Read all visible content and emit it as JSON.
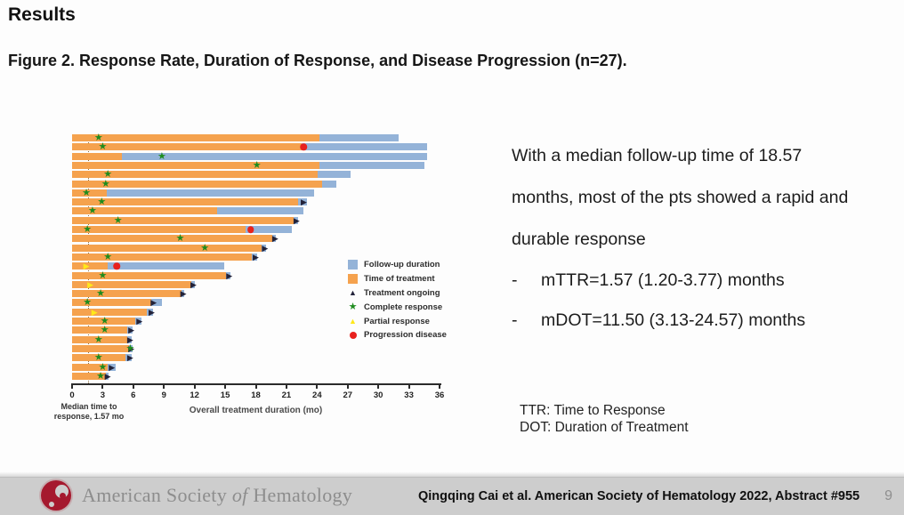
{
  "slide": {
    "title": "Results",
    "figure_caption": "Figure 2. Response Rate, Duration of Response, and Disease Progression (n=27).",
    "body": {
      "paragraph_lines": [
        "With a median follow-up time of 18.57",
        "months, most of the pts showed a rapid and",
        "durable response"
      ],
      "bullet_dash": "-",
      "bullets": [
        "mTTR=1.57 (1.20-3.77) months",
        "mDOT=11.50 (3.13-24.57) months"
      ]
    },
    "footnote_lines": [
      "TTR: Time to Response",
      "DOT: Duration of Treatment"
    ],
    "footer": {
      "org_prefix": "American Society ",
      "org_middle": "of",
      "org_suffix": " Hematology",
      "citation": "Qingqing Cai et al. American Society of Hematology 2022, Abstract #955",
      "page": "9"
    }
  },
  "chart_data": {
    "type": "bar",
    "subtype": "swimmer-plot",
    "n_patients": 27,
    "xlabel": "Overall treatment duration (mo)",
    "xlim": [
      0,
      36
    ],
    "x_ticks": [
      0,
      3,
      6,
      9,
      12,
      15,
      18,
      21,
      24,
      27,
      30,
      33,
      36
    ],
    "reference_line": {
      "x": 1.57,
      "style": "dotted",
      "label_lines": [
        "Median time to",
        "response, 1.57 mo"
      ]
    },
    "colors": {
      "followup": "#94b3d8",
      "treatment": "#f5a24e",
      "complete_response": "#1e8c1e",
      "partial_response": "#ffe81a",
      "progression": "#e8211d",
      "ongoing": "#23233a"
    },
    "legend": [
      {
        "label": "Follow-up duration",
        "marker": "square",
        "color": "#94b3d8"
      },
      {
        "label": "Time of treatment",
        "marker": "square",
        "color": "#f5a24e"
      },
      {
        "label": "Treatment ongoing",
        "marker": "triangle-up",
        "color": "#23233a"
      },
      {
        "label": "Complete response",
        "marker": "star",
        "color": "#1e8c1e"
      },
      {
        "label": "Partial response",
        "marker": "triangle-up",
        "color": "#ffe81a"
      },
      {
        "label": "Progression disease",
        "marker": "circle",
        "color": "#e8211d"
      }
    ],
    "patients": [
      {
        "followup": 32.0,
        "treatment": 24.2,
        "markers": [
          {
            "t": "cr",
            "x": 2.6
          }
        ]
      },
      {
        "followup": 34.8,
        "treatment": 22.5,
        "markers": [
          {
            "t": "cr",
            "x": 3.0
          },
          {
            "t": "pd",
            "x": 22.7
          }
        ]
      },
      {
        "followup": 34.8,
        "treatment": 4.9,
        "markers": [
          {
            "t": "cr",
            "x": 8.8
          }
        ]
      },
      {
        "followup": 34.5,
        "treatment": 24.2,
        "markers": [
          {
            "t": "cr",
            "x": 18.1
          }
        ]
      },
      {
        "followup": 27.3,
        "treatment": 24.1,
        "markers": [
          {
            "t": "cr",
            "x": 3.5
          }
        ]
      },
      {
        "followup": 25.9,
        "treatment": 24.5,
        "markers": [
          {
            "t": "cr",
            "x": 3.3
          }
        ]
      },
      {
        "followup": 23.7,
        "treatment": 3.4,
        "markers": [
          {
            "t": "cr",
            "x": 1.4
          }
        ]
      },
      {
        "followup": 23.0,
        "treatment": 22.1,
        "markers": [
          {
            "t": "cr",
            "x": 2.9
          },
          {
            "t": "on",
            "x": 22.7
          }
        ]
      },
      {
        "followup": 22.7,
        "treatment": 14.2,
        "markers": [
          {
            "t": "cr",
            "x": 2.0
          }
        ]
      },
      {
        "followup": 22.1,
        "treatment": 21.7,
        "markers": [
          {
            "t": "cr",
            "x": 4.5
          },
          {
            "t": "on",
            "x": 22.0
          }
        ]
      },
      {
        "followup": 21.5,
        "treatment": 17.0,
        "markers": [
          {
            "t": "cr",
            "x": 1.5
          },
          {
            "t": "pd",
            "x": 17.5
          }
        ]
      },
      {
        "followup": 20.0,
        "treatment": 19.6,
        "markers": [
          {
            "t": "cr",
            "x": 10.6
          },
          {
            "t": "on",
            "x": 19.9
          }
        ]
      },
      {
        "followup": 19.0,
        "treatment": 18.6,
        "markers": [
          {
            "t": "cr",
            "x": 13.0
          },
          {
            "t": "on",
            "x": 18.9
          }
        ]
      },
      {
        "followup": 18.1,
        "treatment": 17.6,
        "markers": [
          {
            "t": "cr",
            "x": 3.5
          },
          {
            "t": "on",
            "x": 18.0
          }
        ]
      },
      {
        "followup": 14.9,
        "treatment": 3.5,
        "markers": [
          {
            "t": "pr",
            "x": 1.4
          },
          {
            "t": "pd",
            "x": 4.4
          }
        ]
      },
      {
        "followup": 15.5,
        "treatment": 15.1,
        "markers": [
          {
            "t": "cr",
            "x": 3.0
          },
          {
            "t": "on",
            "x": 15.4
          }
        ]
      },
      {
        "followup": 12.0,
        "treatment": 11.7,
        "markers": [
          {
            "t": "pr",
            "x": 1.8
          },
          {
            "t": "on",
            "x": 11.9
          }
        ]
      },
      {
        "followup": 11.0,
        "treatment": 10.7,
        "markers": [
          {
            "t": "cr",
            "x": 2.8
          },
          {
            "t": "on",
            "x": 10.9
          }
        ]
      },
      {
        "followup": 8.8,
        "treatment": 7.8,
        "markers": [
          {
            "t": "cr",
            "x": 1.5
          },
          {
            "t": "on",
            "x": 8.0
          }
        ]
      },
      {
        "followup": 7.9,
        "treatment": 7.3,
        "markers": [
          {
            "t": "pr",
            "x": 2.2
          },
          {
            "t": "on",
            "x": 7.8
          }
        ]
      },
      {
        "followup": 6.8,
        "treatment": 6.2,
        "markers": [
          {
            "t": "cr",
            "x": 3.2
          },
          {
            "t": "on",
            "x": 6.6
          }
        ]
      },
      {
        "followup": 5.9,
        "treatment": 5.4,
        "markers": [
          {
            "t": "cr",
            "x": 3.2
          },
          {
            "t": "on",
            "x": 5.8
          }
        ]
      },
      {
        "followup": 5.8,
        "treatment": 5.4,
        "markers": [
          {
            "t": "cr",
            "x": 2.6
          },
          {
            "t": "on",
            "x": 5.7
          }
        ]
      },
      {
        "followup": 5.9,
        "treatment": 5.6,
        "markers": [
          {
            "t": "on",
            "x": 5.8
          },
          {
            "t": "cr",
            "x": 5.7
          }
        ]
      },
      {
        "followup": 5.8,
        "treatment": 5.2,
        "markers": [
          {
            "t": "cr",
            "x": 2.6
          },
          {
            "t": "on",
            "x": 5.7
          }
        ]
      },
      {
        "followup": 4.3,
        "treatment": 3.5,
        "markers": [
          {
            "t": "cr",
            "x": 3.0
          },
          {
            "t": "on",
            "x": 3.9
          }
        ]
      },
      {
        "followup": 3.6,
        "treatment": 3.3,
        "markers": [
          {
            "t": "cr",
            "x": 2.8
          },
          {
            "t": "on",
            "x": 3.5
          }
        ]
      }
    ]
  }
}
